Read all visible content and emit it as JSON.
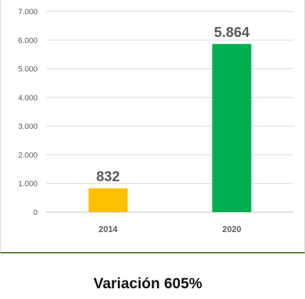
{
  "chart_data": {
    "type": "bar",
    "categories": [
      "2014",
      "2020"
    ],
    "values": [
      832,
      5864
    ],
    "data_labels": [
      "832",
      "5.864"
    ],
    "colors": [
      "#FFC000",
      "#00B050"
    ],
    "ylim": [
      0,
      7000
    ],
    "yticks": [
      0,
      1000,
      2000,
      3000,
      4000,
      5000,
      6000,
      7000
    ],
    "ytick_labels": [
      "0",
      "1.000",
      "2.000",
      "3.000",
      "4.000",
      "5.000",
      "6.000",
      "7.000"
    ],
    "grid": true,
    "legend": "none",
    "title": "",
    "xlabel": "",
    "ylabel": ""
  },
  "caption": {
    "text": "Variación 605%"
  }
}
